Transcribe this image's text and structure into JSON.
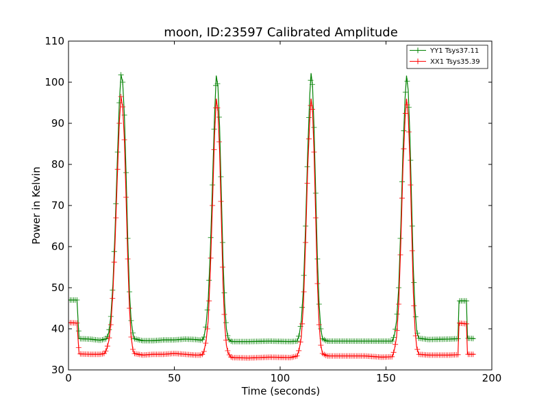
{
  "chart_data": {
    "type": "line",
    "title": "moon, ID:23597 Calibrated Amplitude",
    "xlabel": "Time (seconds)",
    "ylabel": "Power in Kelvin",
    "xlim": [
      0,
      200
    ],
    "ylim": [
      30,
      110
    ],
    "xticks": [
      "0",
      "50",
      "100",
      "150",
      "200"
    ],
    "yticks": [
      "30",
      "40",
      "50",
      "60",
      "70",
      "80",
      "90",
      "100",
      "110"
    ],
    "grid": false,
    "legend_position": "top-right",
    "series": [
      {
        "name": "YY1 Tsys37.11",
        "color": "#008000",
        "marker": "plus",
        "points": [
          [
            0,
            47
          ],
          [
            4,
            47
          ],
          [
            5,
            37.6
          ],
          [
            10,
            37.5
          ],
          [
            15,
            37.2
          ],
          [
            18,
            37.6
          ],
          [
            19,
            39
          ],
          [
            20,
            43
          ],
          [
            21,
            51
          ],
          [
            22,
            64
          ],
          [
            23,
            80
          ],
          [
            24,
            95
          ],
          [
            24.8,
            101.8
          ],
          [
            25.6,
            100
          ],
          [
            26.4,
            92
          ],
          [
            27.2,
            78
          ],
          [
            28,
            62
          ],
          [
            28.8,
            49
          ],
          [
            29.6,
            42
          ],
          [
            30.4,
            39
          ],
          [
            31,
            37.6
          ],
          [
            35,
            37.1
          ],
          [
            40,
            37.1
          ],
          [
            45,
            37.3
          ],
          [
            50,
            37.3
          ],
          [
            55,
            37.5
          ],
          [
            60,
            37.4
          ],
          [
            63,
            37.2
          ],
          [
            64,
            38
          ],
          [
            65,
            41
          ],
          [
            66,
            47
          ],
          [
            67,
            59
          ],
          [
            68,
            75
          ],
          [
            69,
            92
          ],
          [
            69.8,
            101.6
          ],
          [
            70.6,
            99
          ],
          [
            71.4,
            89
          ],
          [
            72.2,
            73
          ],
          [
            73,
            57
          ],
          [
            73.8,
            46
          ],
          [
            74.6,
            40
          ],
          [
            75.5,
            37.5
          ],
          [
            77,
            36.9
          ],
          [
            85,
            36.9
          ],
          [
            95,
            37
          ],
          [
            105,
            36.9
          ],
          [
            108,
            37
          ],
          [
            109,
            38.5
          ],
          [
            110,
            42
          ],
          [
            111,
            50
          ],
          [
            112,
            65
          ],
          [
            113,
            83
          ],
          [
            114,
            97
          ],
          [
            114.6,
            102.2
          ],
          [
            115.3,
            99
          ],
          [
            116,
            89
          ],
          [
            116.8,
            73
          ],
          [
            117.6,
            57
          ],
          [
            118.4,
            46
          ],
          [
            119.2,
            40
          ],
          [
            120,
            37.6
          ],
          [
            122,
            37
          ],
          [
            130,
            37
          ],
          [
            140,
            37
          ],
          [
            148,
            37
          ],
          [
            153,
            37
          ],
          [
            154,
            38.5
          ],
          [
            155,
            42
          ],
          [
            156,
            50
          ],
          [
            157,
            65
          ],
          [
            158,
            83
          ],
          [
            159,
            96
          ],
          [
            159.7,
            101.6
          ],
          [
            160.5,
            98
          ],
          [
            161.3,
            87
          ],
          [
            162.1,
            71
          ],
          [
            162.9,
            55
          ],
          [
            163.7,
            45
          ],
          [
            164.5,
            39.5
          ],
          [
            165.5,
            37.7
          ],
          [
            170,
            37.4
          ],
          [
            180,
            37.5
          ],
          [
            184,
            37.6
          ],
          [
            184.5,
            46.8
          ],
          [
            188,
            46.8
          ],
          [
            188.5,
            37.7
          ],
          [
            192,
            37.6
          ]
        ]
      },
      {
        "name": "XX1 Tsys35.39",
        "color": "#ff0000",
        "marker": "plus",
        "points": [
          [
            0,
            41.5
          ],
          [
            4,
            41.4
          ],
          [
            5,
            33.9
          ],
          [
            10,
            33.8
          ],
          [
            15,
            33.8
          ],
          [
            17,
            34
          ],
          [
            18,
            35
          ],
          [
            19,
            37
          ],
          [
            20,
            41
          ],
          [
            21,
            49
          ],
          [
            22,
            61
          ],
          [
            23,
            76
          ],
          [
            24,
            90
          ],
          [
            24.8,
            96.5
          ],
          [
            25.6,
            94
          ],
          [
            26.4,
            86
          ],
          [
            27.2,
            72
          ],
          [
            28,
            57
          ],
          [
            28.8,
            45
          ],
          [
            29.6,
            38
          ],
          [
            30.4,
            35
          ],
          [
            31,
            34
          ],
          [
            35,
            33.6
          ],
          [
            40,
            33.8
          ],
          [
            45,
            33.8
          ],
          [
            50,
            34
          ],
          [
            55,
            33.8
          ],
          [
            60,
            33.6
          ],
          [
            63,
            33.6
          ],
          [
            64,
            34.5
          ],
          [
            65,
            37
          ],
          [
            66,
            42
          ],
          [
            67,
            54
          ],
          [
            68,
            70
          ],
          [
            69,
            87
          ],
          [
            69.8,
            96
          ],
          [
            70.6,
            93
          ],
          [
            71.4,
            83
          ],
          [
            72.2,
            67
          ],
          [
            73,
            51
          ],
          [
            73.8,
            41
          ],
          [
            74.6,
            36
          ],
          [
            75.5,
            34
          ],
          [
            77,
            33
          ],
          [
            85,
            32.9
          ],
          [
            95,
            33.1
          ],
          [
            105,
            33
          ],
          [
            108,
            33.4
          ],
          [
            109,
            35
          ],
          [
            110,
            38
          ],
          [
            111,
            46
          ],
          [
            112,
            61
          ],
          [
            113,
            79
          ],
          [
            114,
            91
          ],
          [
            114.6,
            96
          ],
          [
            115.3,
            93
          ],
          [
            116,
            83
          ],
          [
            116.8,
            67
          ],
          [
            117.6,
            51
          ],
          [
            118.4,
            41
          ],
          [
            119.2,
            36
          ],
          [
            120,
            34
          ],
          [
            122,
            33.4
          ],
          [
            130,
            33.4
          ],
          [
            140,
            33.4
          ],
          [
            148,
            33.1
          ],
          [
            153,
            33.2
          ],
          [
            154,
            35
          ],
          [
            155,
            38
          ],
          [
            156,
            46
          ],
          [
            157,
            61
          ],
          [
            158,
            79
          ],
          [
            159,
            91
          ],
          [
            159.7,
            96
          ],
          [
            160.5,
            92
          ],
          [
            161.3,
            81
          ],
          [
            162.1,
            65
          ],
          [
            162.9,
            49
          ],
          [
            163.7,
            40
          ],
          [
            164.5,
            35.5
          ],
          [
            165.5,
            33.8
          ],
          [
            170,
            33.6
          ],
          [
            180,
            33.6
          ],
          [
            184,
            33.7
          ],
          [
            184.5,
            41.4
          ],
          [
            188,
            41.2
          ],
          [
            188.5,
            33.8
          ],
          [
            192,
            33.8
          ]
        ]
      }
    ]
  }
}
